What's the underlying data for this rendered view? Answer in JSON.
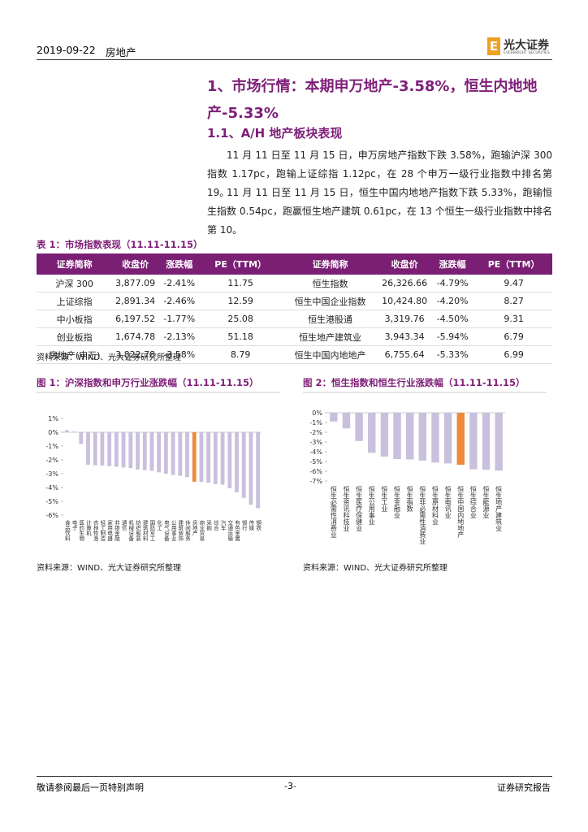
{
  "header": {
    "date": "2019-09-22",
    "sector": "房地产",
    "logo": "光大证券",
    "logo_en": "EVERBRIGHT SECURITIES"
  },
  "section": {
    "title": "1、市场行情：本期申万地产-3.58%，恒生内地地产-5.33%",
    "subtitle": "1.1、A/H 地产板块表现",
    "paragraphs": [
      "11 月 11 日至 11 月 15 日，申万房地产指数下跌 3.58%，跑输沪深 300 指数 1.17pc，跑输上证综指 1.12pc，在 28 个申万一级行业指数中排名第 19。",
      "11 月 11 日至 11 月 15 日，恒生中国内地地产指数下跌 5.33%，跑输恒生指数 0.54pc，跑赢恒生地产建筑 0.61pc，在 13 个恒生一级行业指数中排名第 10。"
    ]
  },
  "table": {
    "caption": "表 1：市场指数表现（11.11-11.15）",
    "columns": [
      "证券简称",
      "收盘价",
      "涨跌幅",
      "PE（TTM）",
      "证券简称",
      "收盘价",
      "涨跌幅",
      "PE（TTM）"
    ],
    "rows": [
      [
        "沪深 300",
        "3,877.09",
        "-2.41%",
        "11.75",
        "恒生指数",
        "26,326.66",
        "-4.79%",
        "9.47"
      ],
      [
        "上证综指",
        "2,891.34",
        "-2.46%",
        "12.59",
        "恒生中国企业指数",
        "10,424.80",
        "-4.20%",
        "8.27"
      ],
      [
        "中小板指",
        "6,197.52",
        "-1.77%",
        "25.08",
        "恒生港股通",
        "3,319.76",
        "-4.50%",
        "9.31"
      ],
      [
        "创业板指",
        "1,674.78",
        "-2.13%",
        "51.18",
        "恒生地产建筑业",
        "3,943.34",
        "-5.94%",
        "6.79"
      ],
      [
        "房地产(申万)",
        "3,822.78",
        "-3.58%",
        "8.79",
        "恒生中国内地地产",
        "6,755.64",
        "-5.33%",
        "6.99"
      ]
    ],
    "source": "资料来源：WIND、光大证券研究所整理"
  },
  "chart_data": [
    {
      "type": "bar",
      "title": "图 1：沪深指数和申万行业涨跌幅（11.11-11.15）",
      "categories": [
        "食品饮料",
        "电子",
        "医药生物",
        "计算机",
        "农林牧渔",
        "轻工制造",
        "家用电器",
        "非银金融",
        "通信",
        "机械设备",
        "纺织服装",
        "建筑材料",
        "国防军工",
        "化工",
        "电气设备",
        "公用事业",
        "建筑装饰",
        "休闲服务",
        "房地产",
        "商业贸易",
        "采掘",
        "综合",
        "汽车",
        "交通运输",
        "有色金属",
        "银行",
        "传媒",
        "钢铁"
      ],
      "values": [
        0.15,
        0.05,
        -0.85,
        -2.35,
        -2.4,
        -2.4,
        -2.45,
        -2.5,
        -2.55,
        -2.6,
        -2.7,
        -2.75,
        -2.8,
        -2.9,
        -3.0,
        -3.1,
        -3.15,
        -3.25,
        -3.58,
        -3.6,
        -3.65,
        -3.75,
        -3.8,
        -4.05,
        -4.35,
        -4.75,
        -5.25,
        -5.5
      ],
      "colors": [
        "#c8c0dd",
        "#c8c0dd",
        "#c8c0dd",
        "#c8c0dd",
        "#c8c0dd",
        "#c8c0dd",
        "#c8c0dd",
        "#c8c0dd",
        "#c8c0dd",
        "#c8c0dd",
        "#c8c0dd",
        "#c8c0dd",
        "#c8c0dd",
        "#c8c0dd",
        "#c8c0dd",
        "#c8c0dd",
        "#c8c0dd",
        "#c8c0dd",
        "#ee8a3a",
        "#c8c0dd",
        "#c8c0dd",
        "#c8c0dd",
        "#c8c0dd",
        "#c8c0dd",
        "#c8c0dd",
        "#c8c0dd",
        "#c8c0dd",
        "#c8c0dd"
      ],
      "ylim": [
        -6,
        1
      ],
      "yticks": [
        {
          "value": 1,
          "label": "1%"
        },
        {
          "value": 0,
          "label": "0%"
        },
        {
          "value": -1,
          "label": "-1%"
        },
        {
          "value": -2,
          "label": "-2%"
        },
        {
          "value": -3,
          "label": "-3%"
        },
        {
          "value": -4,
          "label": "-4%"
        },
        {
          "value": -5,
          "label": "-5%"
        },
        {
          "value": -6,
          "label": "-6%"
        }
      ],
      "source": "资料来源：WIND、光大证券研究所整理"
    },
    {
      "type": "bar",
      "title": "图 2：恒生指数和恒生行业涨跌幅（11.11-11.15）",
      "categories": [
        "恒生必需性消费业",
        "恒生资讯科技业",
        "恒生医疗保健业",
        "恒生公用事业",
        "恒生工业",
        "恒生金融业",
        "恒生指数",
        "恒生非必需性消费业",
        "恒生原材料业",
        "恒生电讯业",
        "恒生中国内地地产",
        "恒生综合业",
        "恒生能源业",
        "恒生地产建筑业"
      ],
      "values": [
        -0.9,
        -1.6,
        -2.9,
        -4.1,
        -4.5,
        -4.75,
        -4.79,
        -4.9,
        -5.1,
        -5.2,
        -5.33,
        -5.8,
        -5.85,
        -5.94
      ],
      "colors": [
        "#c8c0dd",
        "#c8c0dd",
        "#c8c0dd",
        "#c8c0dd",
        "#c8c0dd",
        "#c8c0dd",
        "#c8c0dd",
        "#c8c0dd",
        "#c8c0dd",
        "#c8c0dd",
        "#ee8a3a",
        "#c8c0dd",
        "#c8c0dd",
        "#c8c0dd"
      ],
      "ylim": [
        -7,
        0
      ],
      "yticks": [
        {
          "value": 0,
          "label": "0%"
        },
        {
          "value": -1,
          "label": "-1%"
        },
        {
          "value": -2,
          "label": "-2%"
        },
        {
          "value": -3,
          "label": "-3%"
        },
        {
          "value": -4,
          "label": "-4%"
        },
        {
          "value": -5,
          "label": "-5%"
        },
        {
          "value": -6,
          "label": "-6%"
        },
        {
          "value": -7,
          "label": "-7%"
        }
      ],
      "source": "资料来源：WIND、光大证券研究所整理"
    }
  ],
  "footer": {
    "disclaimer": "敬请参阅最后一页特别声明",
    "page": "-3-",
    "label": "证券研究报告"
  }
}
